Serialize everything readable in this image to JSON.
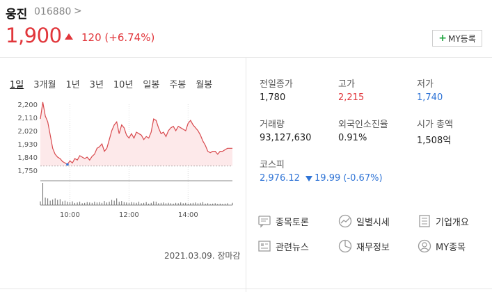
{
  "stock": {
    "name": "웅진",
    "code": "016880",
    "code_chevron": ">",
    "price": "1,900",
    "change": "120 (+6.74%)",
    "my_button_plus": "+",
    "my_button_label": "MY등록"
  },
  "tabs": [
    "1일",
    "3개월",
    "1년",
    "3년",
    "10년",
    "일봉",
    "주봉",
    "월봉"
  ],
  "chart_data": {
    "type": "line",
    "y_ticks": [
      "2,200",
      "2,110",
      "2,020",
      "1,930",
      "1,840",
      "1,750"
    ],
    "x_ticks": [
      "10:00",
      "12:00",
      "14:00"
    ],
    "ylim": [
      1750,
      2200
    ],
    "previous_close": 1780,
    "series": [
      {
        "x": [
          "09:00",
          "09:05",
          "09:10",
          "09:15",
          "09:20",
          "09:25",
          "09:30",
          "09:35",
          "09:40",
          "09:45",
          "09:50",
          "09:55",
          "10:00",
          "10:05",
          "10:10",
          "10:15",
          "10:20",
          "10:25",
          "10:30",
          "10:35",
          "10:40",
          "10:45",
          "10:50",
          "10:55",
          "11:00",
          "11:05",
          "11:10",
          "11:15",
          "11:20",
          "11:25",
          "11:30",
          "11:35",
          "11:40",
          "11:45",
          "11:50",
          "11:55",
          "12:00",
          "12:05",
          "12:10",
          "12:15",
          "12:20",
          "12:25",
          "12:30",
          "12:35",
          "12:40",
          "12:45",
          "12:50",
          "12:55",
          "13:00",
          "13:05",
          "13:10",
          "13:15",
          "13:20",
          "13:25",
          "13:30",
          "13:35",
          "13:40",
          "13:45",
          "13:50",
          "13:55",
          "14:00",
          "14:05",
          "14:10",
          "14:15",
          "14:20",
          "14:25",
          "14:30",
          "14:35",
          "14:40",
          "14:45",
          "14:50",
          "14:55",
          "15:00",
          "15:05",
          "15:10",
          "15:15",
          "15:20",
          "15:30"
        ],
        "y": [
          2100,
          2215,
          2120,
          2080,
          1990,
          1900,
          1860,
          1840,
          1830,
          1810,
          1800,
          1790,
          1815,
          1800,
          1830,
          1820,
          1850,
          1840,
          1830,
          1840,
          1820,
          1845,
          1860,
          1900,
          1910,
          1930,
          1880,
          1900,
          1960,
          2020,
          2060,
          2080,
          2000,
          2060,
          2040,
          1990,
          1970,
          2000,
          1970,
          2010,
          2000,
          1990,
          1960,
          1980,
          1970,
          2010,
          2100,
          2090,
          2040,
          2000,
          2010,
          1980,
          2020,
          2040,
          2050,
          2020,
          2050,
          2040,
          2030,
          2020,
          2070,
          2090,
          2060,
          2040,
          2020,
          1990,
          1950,
          1920,
          1880,
          1870,
          1880,
          1880,
          1860,
          1880,
          1880,
          1890,
          1900,
          1900
        ]
      }
    ],
    "volume": [
      10,
      60,
      20,
      18,
      12,
      15,
      18,
      14,
      16,
      10,
      12,
      9,
      8,
      10,
      6,
      7,
      9,
      5,
      6,
      8,
      7,
      6,
      9,
      7,
      8,
      6,
      11,
      7,
      9,
      14,
      12,
      18,
      9,
      11,
      8,
      7,
      6,
      8,
      7,
      6,
      9,
      5,
      6,
      8,
      4,
      6,
      10,
      9,
      5,
      6,
      7,
      5,
      6,
      5,
      4,
      6,
      5,
      7,
      5,
      6,
      4,
      5,
      6,
      7,
      5,
      6,
      8,
      4,
      5,
      3,
      4,
      5,
      3,
      4,
      3,
      4,
      5,
      6
    ]
  },
  "date_label": "2021.03.09. 장마감",
  "stats": {
    "prev_close_label": "전일종가",
    "prev_close": "1,780",
    "high_label": "고가",
    "high": "2,215",
    "low_label": "저가",
    "low": "1,740",
    "volume_label": "거래량",
    "volume": "93,127,630",
    "foreign_label": "외국인소진율",
    "foreign": "0.91%",
    "mcap_label": "시가 총액",
    "mcap": "1,508억",
    "kospi_label": "코스피",
    "kospi": "2,976.12",
    "kospi_change": "19.99 (-0.67%)"
  },
  "links": {
    "discussion": "종목토론",
    "daily": "일별시세",
    "company": "기업개요",
    "news": "관련뉴스",
    "finance": "재무정보",
    "my": "MY종목"
  },
  "colors": {
    "up": "#e1363b",
    "down": "#2f74d6",
    "line": "#d8494d",
    "fill": "#fde9ea"
  }
}
